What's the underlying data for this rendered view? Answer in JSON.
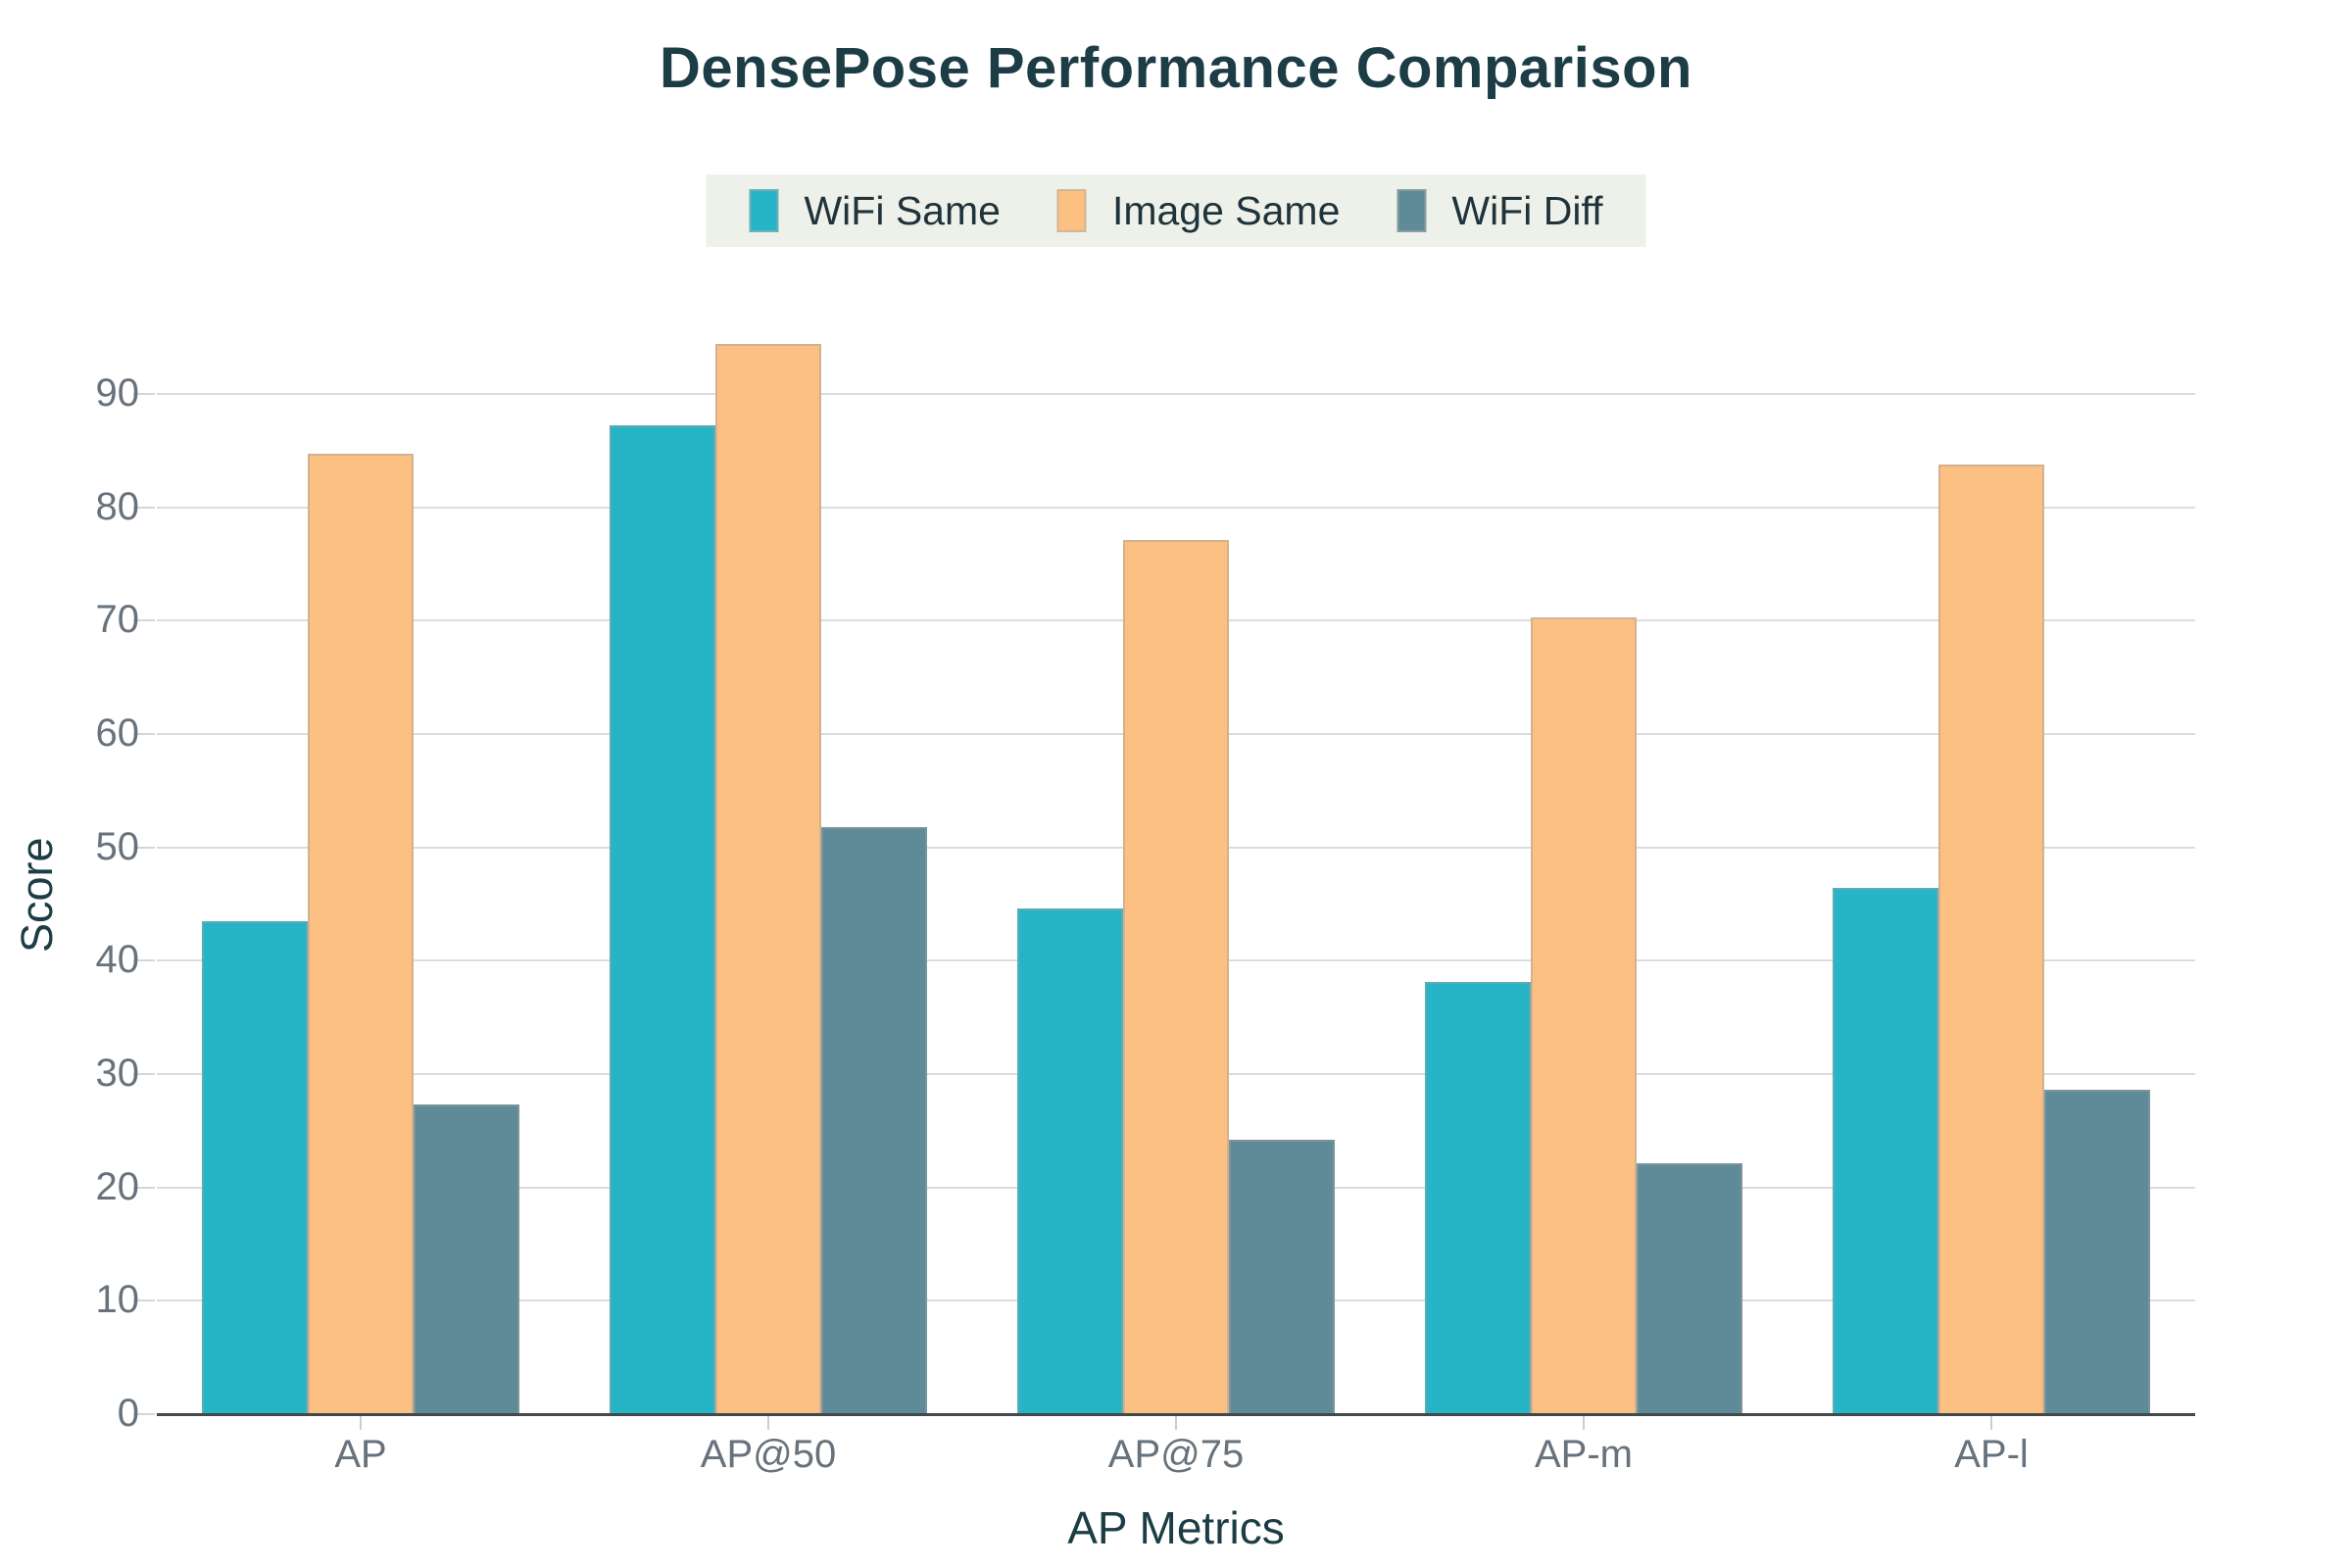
{
  "title": "DensePose Performance Comparison",
  "legend": {
    "position": "top-center",
    "background": "#eef1e9"
  },
  "chart_data": {
    "type": "bar",
    "title": "DensePose Performance Comparison",
    "categories": [
      "AP",
      "AP@50",
      "AP@75",
      "AP-m",
      "AP-l"
    ],
    "series": [
      {
        "name": "WiFi Same",
        "color": "#26b4c7",
        "values": [
          43.5,
          87.2,
          44.6,
          38.1,
          46.4
        ]
      },
      {
        "name": "Image Same",
        "color": "#fcc083",
        "values": [
          84.7,
          94.4,
          77.1,
          70.3,
          83.8
        ]
      },
      {
        "name": "WiFi Diff",
        "color": "#5e8b97",
        "values": [
          27.3,
          51.8,
          24.2,
          22.1,
          28.6
        ]
      }
    ],
    "xlabel": "AP Metrics",
    "ylabel": "Score",
    "ylim": [
      0,
      98
    ],
    "yticks": [
      0,
      10,
      20,
      30,
      40,
      50,
      60,
      70,
      80,
      90
    ],
    "grid": true,
    "legend_position": "top-center"
  },
  "colors": {
    "title_text": "#1d3d46",
    "tick_text": "#67727c",
    "grid": "#dcdcdc",
    "axis_line": "#43484c",
    "legend_bg": "#eef1e9",
    "background": "#ffffff"
  }
}
